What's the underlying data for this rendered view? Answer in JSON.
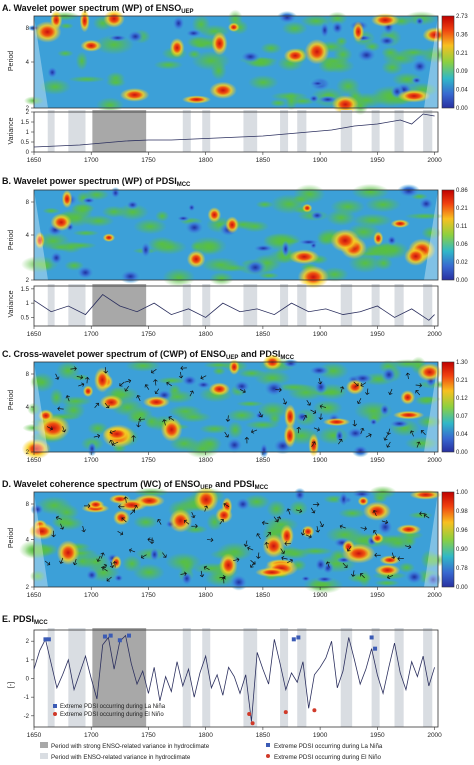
{
  "panels": {
    "a": {
      "title": "A. Wavelet power spectrum (WP) of ENSO",
      "sub": "UEP"
    },
    "b": {
      "title": "B. Wavelet power spectrum (WP) of PDSI",
      "sub": "MCC"
    },
    "c": {
      "title": "C. Cross-wavelet power spectrum of (CWP) of ENSO",
      "sub1": "UEP",
      "mid": " and PDSI",
      "sub2": "MCC"
    },
    "d": {
      "title": "D. Wavelet coherence spectrum (WC) of ENSO",
      "sub1": "UEP",
      "mid": " and PDSI",
      "sub2": "MCC"
    },
    "e": {
      "title": "E. PDSI",
      "sub": "MCC"
    }
  },
  "axis_labels": {
    "period": "Period",
    "variance": "Variance",
    "pdsi": "[-]"
  },
  "period_ticks": [
    "2",
    "4",
    "8"
  ],
  "year_ticks": [
    "1650",
    "1700",
    "1750",
    "1800",
    "1850",
    "1900",
    "1950",
    "2000"
  ],
  "colorbars": {
    "a": [
      "2.73",
      "0.36",
      "0.21",
      "0.09",
      "0.04",
      "0.00"
    ],
    "b": [
      "0.86",
      "0.21",
      "0.11",
      "0.06",
      "0.02",
      "0.00"
    ],
    "c": [
      "1.30",
      "0.21",
      "0.12",
      "0.07",
      "0.04",
      "0.00"
    ],
    "d": [
      "1.00",
      "0.98",
      "0.96",
      "0.90",
      "0.78",
      "0.00"
    ]
  },
  "variance_ticks": {
    "a": [
      "0",
      "0.5",
      "1",
      "1.5",
      "2"
    ],
    "b": [
      "0.5",
      "1",
      "1.5"
    ]
  },
  "pdsi_ticks": [
    "2",
    "1",
    "0",
    "-1",
    "-2"
  ],
  "inset_legend": {
    "la_nina": "Extreme PDSI occurring during La Niña",
    "el_nino": "Extreme PDSI occurring during El Niño"
  },
  "legend": {
    "strong_period": "Period with strong ENSO-related variance in hydroclimate",
    "period": "Period with ENSO-related variance in hydroclimate",
    "la_nina": "Extreme PDSI occurring during La Niña",
    "el_nino": "Extreme PDSI occurring during El Niño"
  },
  "colors": {
    "strong_band": "#a8a8a8",
    "band": "#d9dde2",
    "la_nina": "#3b5bb5",
    "el_nino": "#d03a2a",
    "line": "#2b2f5e"
  },
  "chart_data": [
    {
      "type": "heatmap",
      "panel": "A",
      "title": "Wavelet power spectrum (WP) of ENSOUEP",
      "xlabel": "",
      "ylabel": "Period",
      "xlim": [
        1650,
        2003
      ],
      "y_ticks": [
        2,
        4,
        8
      ],
      "colorbar": [
        2.73,
        0.36,
        0.21,
        0.09,
        0.04,
        0.0
      ]
    },
    {
      "type": "line",
      "panel": "A-variance",
      "ylabel": "Variance",
      "ylim": [
        0,
        2
      ],
      "x": [
        1650,
        1670,
        1690,
        1710,
        1730,
        1750,
        1770,
        1790,
        1810,
        1830,
        1850,
        1870,
        1890,
        1910,
        1930,
        1950,
        1970,
        1980,
        1990,
        2000
      ],
      "y": [
        0.25,
        0.3,
        0.35,
        0.45,
        0.55,
        0.6,
        0.6,
        0.65,
        0.7,
        0.75,
        0.8,
        0.9,
        1.0,
        1.1,
        1.3,
        1.4,
        1.6,
        1.4,
        1.9,
        1.8
      ]
    },
    {
      "type": "heatmap",
      "panel": "B",
      "title": "Wavelet power spectrum (WP) of PDSIMCC",
      "ylabel": "Period",
      "xlim": [
        1650,
        2003
      ],
      "y_ticks": [
        2,
        4,
        8
      ],
      "colorbar": [
        0.86,
        0.21,
        0.11,
        0.06,
        0.02,
        0.0
      ]
    },
    {
      "type": "line",
      "panel": "B-variance",
      "ylabel": "Variance",
      "ylim": [
        0.2,
        1.6
      ],
      "x": [
        1650,
        1665,
        1680,
        1695,
        1710,
        1725,
        1740,
        1755,
        1770,
        1785,
        1800,
        1815,
        1830,
        1845,
        1860,
        1875,
        1890,
        1905,
        1920,
        1935,
        1950,
        1965,
        1980,
        1995,
        2000
      ],
      "y": [
        1.1,
        0.7,
        0.9,
        0.6,
        1.3,
        0.9,
        0.7,
        1.0,
        0.6,
        0.8,
        0.5,
        1.0,
        0.7,
        0.8,
        0.6,
        1.0,
        0.7,
        0.8,
        0.6,
        0.7,
        0.9,
        0.5,
        0.8,
        0.4,
        0.6
      ]
    },
    {
      "type": "heatmap",
      "panel": "C",
      "title": "Cross-wavelet power spectrum of (CWP) of ENSOUEP and PDSIMCC",
      "ylabel": "Period",
      "xlim": [
        1650,
        2003
      ],
      "y_ticks": [
        2,
        4,
        8
      ],
      "colorbar": [
        1.3,
        0.21,
        0.12,
        0.07,
        0.04,
        0.0
      ]
    },
    {
      "type": "heatmap",
      "panel": "D",
      "title": "Wavelet coherence spectrum (WC) of ENSOUEP and PDSIMCC",
      "ylabel": "Period",
      "xlim": [
        1650,
        2003
      ],
      "y_ticks": [
        2,
        4,
        8
      ],
      "colorbar": [
        1.0,
        0.98,
        0.96,
        0.9,
        0.78,
        0.0
      ]
    },
    {
      "type": "line",
      "panel": "E",
      "title": "PDSIMCC",
      "ylabel": "[-]",
      "ylim": [
        -2.6,
        2.6
      ],
      "x": [
        1650,
        1655,
        1660,
        1665,
        1670,
        1675,
        1680,
        1685,
        1690,
        1695,
        1700,
        1705,
        1710,
        1715,
        1720,
        1725,
        1730,
        1735,
        1740,
        1745,
        1750,
        1755,
        1760,
        1765,
        1770,
        1775,
        1780,
        1785,
        1790,
        1795,
        1800,
        1805,
        1810,
        1815,
        1820,
        1825,
        1830,
        1835,
        1840,
        1845,
        1850,
        1855,
        1860,
        1865,
        1870,
        1875,
        1880,
        1885,
        1890,
        1895,
        1900,
        1905,
        1910,
        1915,
        1920,
        1925,
        1930,
        1935,
        1940,
        1945,
        1950,
        1955,
        1960,
        1965,
        1970,
        1975,
        1980,
        1985,
        1990,
        1995,
        2000
      ],
      "y": [
        0.5,
        1.5,
        2.1,
        0.8,
        -0.5,
        0.2,
        1.0,
        -0.6,
        0.3,
        1.2,
        0.0,
        -1.1,
        1.8,
        2.2,
        0.5,
        2.0,
        2.3,
        0.8,
        -0.3,
        0.4,
        -0.8,
        0.6,
        -1.2,
        0.1,
        -0.7,
        0.9,
        -0.4,
        0.5,
        -1.0,
        0.3,
        1.2,
        -0.5,
        0.2,
        -0.9,
        0.6,
        0.1,
        -0.8,
        0.2,
        -2.3,
        1.4,
        0.5,
        -0.3,
        2.1,
        0.8,
        -0.6,
        0.3,
        -0.2,
        0.9,
        -1.6,
        0.2,
        0.6,
        1.1,
        2.0,
        -0.5,
        0.4,
        2.2,
        1.0,
        -0.3,
        0.5,
        1.6,
        0.2,
        -0.8,
        0.6,
        1.9,
        0.3,
        -0.6,
        0.9,
        0.1,
        1.2,
        -0.4,
        0.6
      ]
    },
    {
      "type": "scatter",
      "panel": "E-la-nina",
      "series": [
        {
          "name": "Extreme PDSI occurring during La Niña",
          "x": [
            1660,
            1663,
            1712,
            1717,
            1725,
            1733,
            1877,
            1881,
            1945,
            1948
          ],
          "y": [
            2.1,
            2.1,
            2.25,
            2.3,
            2.05,
            2.3,
            2.1,
            2.2,
            2.2,
            1.6
          ]
        }
      ]
    },
    {
      "type": "scatter",
      "panel": "E-el-nino",
      "series": [
        {
          "name": "Extreme PDSI occurring during El Niño",
          "x": [
            1838,
            1841,
            1870,
            1895
          ],
          "y": [
            -1.9,
            -2.4,
            -1.8,
            -1.7
          ]
        }
      ]
    }
  ]
}
